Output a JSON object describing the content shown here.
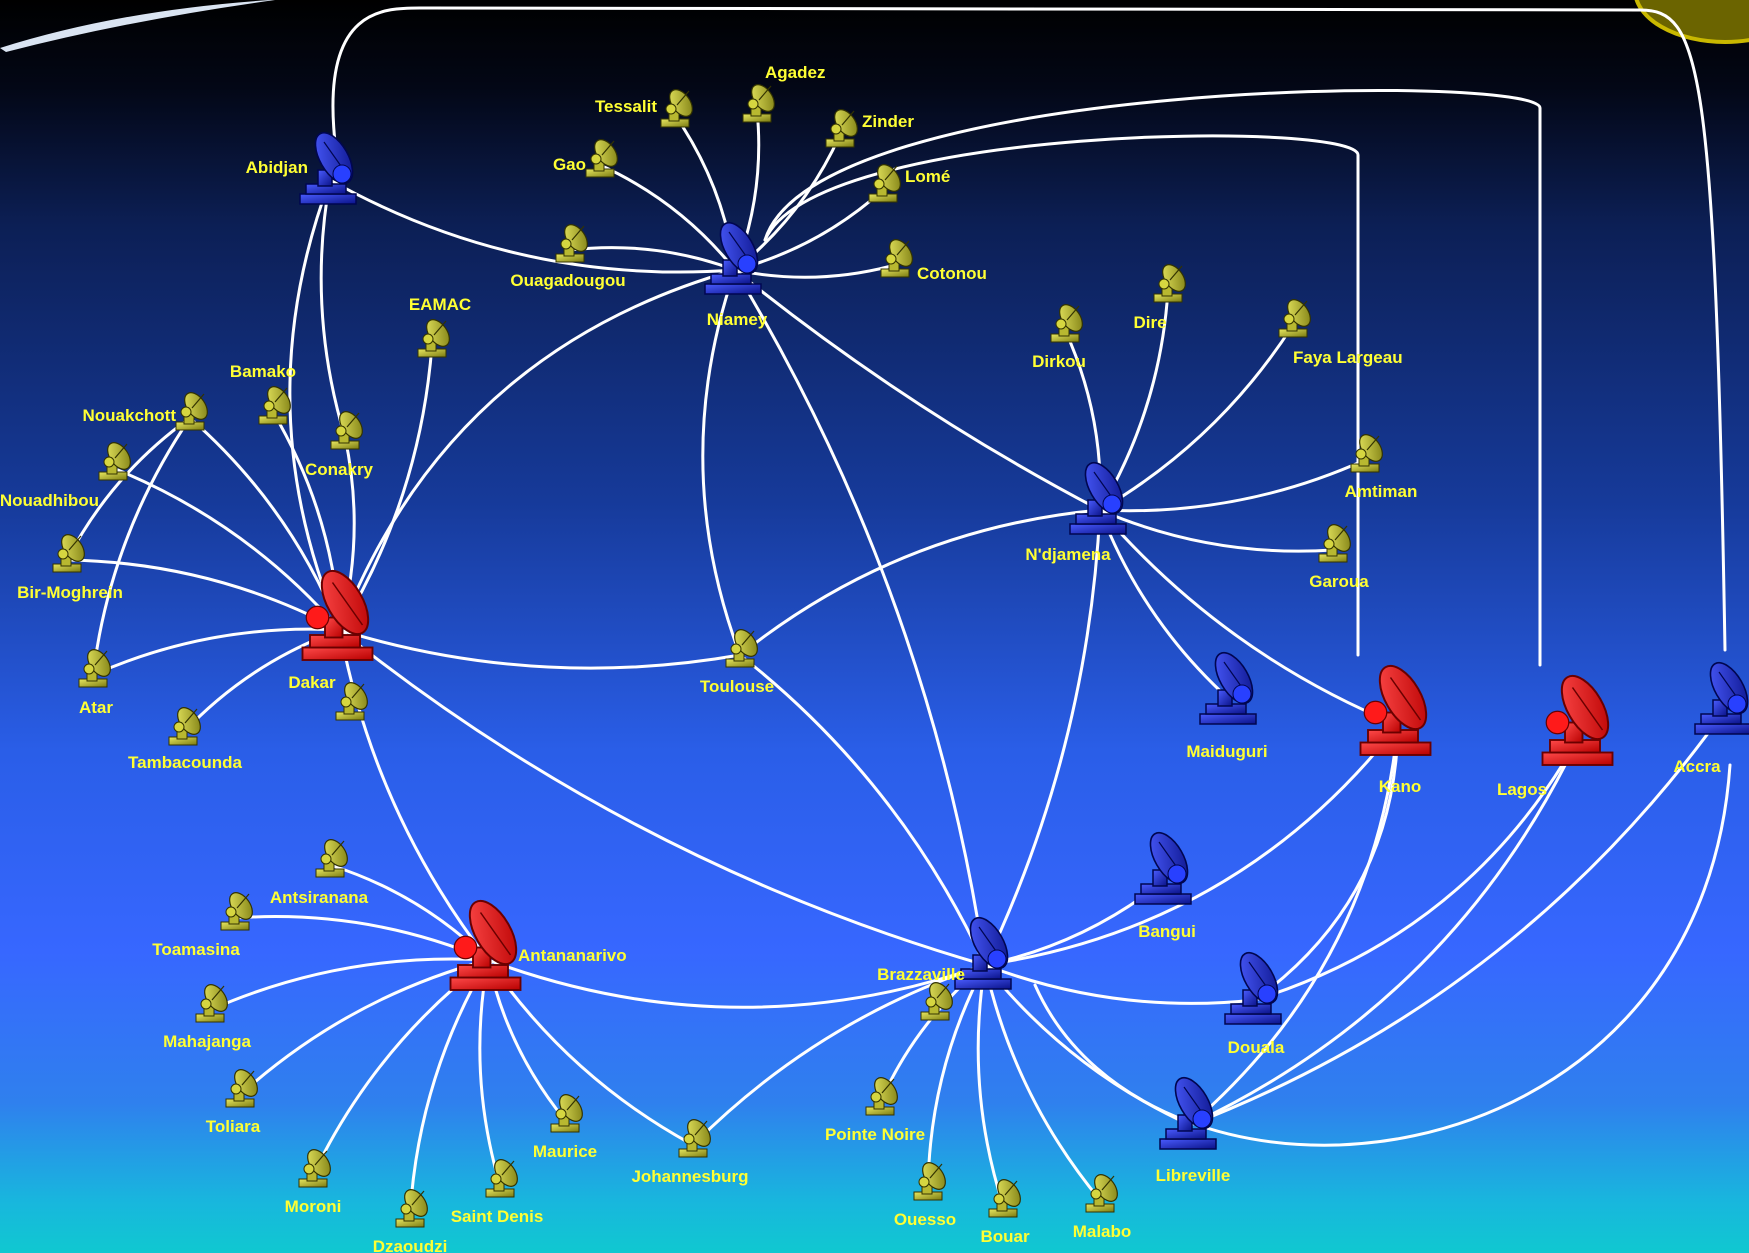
{
  "diagram": {
    "stations": [
      {
        "id": "abidjan",
        "name": "Abidjan",
        "type": "hub-blue"
      },
      {
        "id": "niamey",
        "name": "Niamey",
        "type": "hub-blue"
      },
      {
        "id": "ndjamena",
        "name": "N'djamena",
        "type": "hub-blue"
      },
      {
        "id": "dakar",
        "name": "Dakar",
        "type": "hub-red"
      },
      {
        "id": "antananarivo",
        "name": "Antananarivo",
        "type": "hub-red"
      },
      {
        "id": "brazzaville",
        "name": "Brazzaville",
        "type": "hub-blue"
      },
      {
        "id": "kano",
        "name": "Kano",
        "type": "hub-red"
      },
      {
        "id": "lagos",
        "name": "Lagos",
        "type": "hub-red"
      },
      {
        "id": "accra",
        "name": "Accra",
        "type": "hub-blue"
      },
      {
        "id": "maiduguri",
        "name": "Maiduguri",
        "type": "hub-blue"
      },
      {
        "id": "bangui",
        "name": "Bangui",
        "type": "hub-blue"
      },
      {
        "id": "douala",
        "name": "Douala",
        "type": "hub-blue"
      },
      {
        "id": "libreville",
        "name": "Libreville",
        "type": "hub-blue"
      },
      {
        "id": "tessalit",
        "name": "Tessalit",
        "type": "terminal"
      },
      {
        "id": "agadez",
        "name": "Agadez",
        "type": "terminal"
      },
      {
        "id": "zinder",
        "name": "Zinder",
        "type": "terminal"
      },
      {
        "id": "gao",
        "name": "Gao",
        "type": "terminal"
      },
      {
        "id": "lome",
        "name": "Lomé",
        "type": "terminal"
      },
      {
        "id": "ouagadougou",
        "name": "Ouagadougou",
        "type": "terminal"
      },
      {
        "id": "cotonou",
        "name": "Cotonou",
        "type": "terminal"
      },
      {
        "id": "eamac",
        "name": "EAMAC",
        "type": "terminal"
      },
      {
        "id": "bamako",
        "name": "Bamako",
        "type": "terminal"
      },
      {
        "id": "conakry",
        "name": "Conakry",
        "type": "terminal"
      },
      {
        "id": "nouakchott",
        "name": "Nouakchott",
        "type": "terminal"
      },
      {
        "id": "nouadhibou",
        "name": "Nouadhibou",
        "type": "terminal"
      },
      {
        "id": "birmoghrein",
        "name": "Bir-Moghrein",
        "type": "terminal"
      },
      {
        "id": "atar",
        "name": "Atar",
        "type": "terminal"
      },
      {
        "id": "tambacounda",
        "name": "Tambacounda",
        "type": "terminal"
      },
      {
        "id": "dakar2",
        "name": "",
        "type": "terminal"
      },
      {
        "id": "toulouse",
        "name": "Toulouse",
        "type": "terminal"
      },
      {
        "id": "dirkou",
        "name": "Dirkou",
        "type": "terminal"
      },
      {
        "id": "dire",
        "name": "Dire",
        "type": "terminal"
      },
      {
        "id": "faya",
        "name": "Faya Largeau",
        "type": "terminal"
      },
      {
        "id": "amtiman",
        "name": "Amtiman",
        "type": "terminal"
      },
      {
        "id": "garoua",
        "name": "Garoua",
        "type": "terminal"
      },
      {
        "id": "antsiranana",
        "name": "Antsiranana",
        "type": "terminal"
      },
      {
        "id": "toamasina",
        "name": "Toamasina",
        "type": "terminal"
      },
      {
        "id": "mahajanga",
        "name": "Mahajanga",
        "type": "terminal"
      },
      {
        "id": "toliara",
        "name": "Toliara",
        "type": "terminal"
      },
      {
        "id": "moroni",
        "name": "Moroni",
        "type": "terminal"
      },
      {
        "id": "dzaoudzi",
        "name": "Dzaoudzi",
        "type": "terminal"
      },
      {
        "id": "saintdenis",
        "name": "Saint Denis",
        "type": "terminal"
      },
      {
        "id": "maurice",
        "name": "Maurice",
        "type": "terminal"
      },
      {
        "id": "johannesburg",
        "name": "Johannesburg",
        "type": "terminal"
      },
      {
        "id": "brazza2",
        "name": "",
        "type": "terminal"
      },
      {
        "id": "pointenoire",
        "name": "Pointe Noire",
        "type": "terminal"
      },
      {
        "id": "ouesso",
        "name": "Ouesso",
        "type": "terminal"
      },
      {
        "id": "bouar",
        "name": "Bouar",
        "type": "terminal"
      },
      {
        "id": "malabo",
        "name": "Malabo",
        "type": "terminal"
      }
    ],
    "links": [
      [
        "abidjan",
        "niamey"
      ],
      [
        "abidjan",
        "dakar"
      ],
      [
        "abidjan",
        "conakry"
      ],
      [
        "abidjan",
        "accra"
      ],
      [
        "niamey",
        "tessalit"
      ],
      [
        "niamey",
        "agadez"
      ],
      [
        "niamey",
        "zinder"
      ],
      [
        "niamey",
        "gao"
      ],
      [
        "niamey",
        "lome"
      ],
      [
        "niamey",
        "ouagadougou"
      ],
      [
        "niamey",
        "cotonou"
      ],
      [
        "niamey",
        "kano"
      ],
      [
        "niamey",
        "lagos"
      ],
      [
        "niamey",
        "ndjamena"
      ],
      [
        "niamey",
        "brazzaville"
      ],
      [
        "niamey",
        "dakar"
      ],
      [
        "niamey",
        "toulouse"
      ],
      [
        "dakar",
        "eamac"
      ],
      [
        "dakar",
        "bamako"
      ],
      [
        "dakar",
        "conakry"
      ],
      [
        "dakar",
        "nouakchott"
      ],
      [
        "dakar",
        "nouadhibou"
      ],
      [
        "dakar",
        "birmoghrein"
      ],
      [
        "dakar",
        "atar"
      ],
      [
        "dakar",
        "tambacounda"
      ],
      [
        "dakar",
        "toulouse"
      ],
      [
        "dakar",
        "brazzaville"
      ],
      [
        "dakar",
        "antananarivo"
      ],
      [
        "nouakchott",
        "birmoghrein"
      ],
      [
        "nouakchott",
        "atar"
      ],
      [
        "ndjamena",
        "dirkou"
      ],
      [
        "ndjamena",
        "dire"
      ],
      [
        "ndjamena",
        "faya"
      ],
      [
        "ndjamena",
        "amtiman"
      ],
      [
        "ndjamena",
        "garoua"
      ],
      [
        "ndjamena",
        "maiduguri"
      ],
      [
        "ndjamena",
        "kano"
      ],
      [
        "ndjamena",
        "brazzaville"
      ],
      [
        "ndjamena",
        "toulouse"
      ],
      [
        "toulouse",
        "brazzaville"
      ],
      [
        "antananarivo",
        "antsiranana"
      ],
      [
        "antananarivo",
        "toamasina"
      ],
      [
        "antananarivo",
        "mahajanga"
      ],
      [
        "antananarivo",
        "toliara"
      ],
      [
        "antananarivo",
        "moroni"
      ],
      [
        "antananarivo",
        "dzaoudzi"
      ],
      [
        "antananarivo",
        "saintdenis"
      ],
      [
        "antananarivo",
        "maurice"
      ],
      [
        "antananarivo",
        "johannesburg"
      ],
      [
        "antananarivo",
        "brazzaville"
      ],
      [
        "brazzaville",
        "bangui"
      ],
      [
        "brazzaville",
        "douala"
      ],
      [
        "brazzaville",
        "libreville"
      ],
      [
        "brazzaville",
        "kano"
      ],
      [
        "brazzaville",
        "pointenoire"
      ],
      [
        "brazzaville",
        "ouesso"
      ],
      [
        "brazzaville",
        "bouar"
      ],
      [
        "brazzaville",
        "malabo"
      ],
      [
        "brazzaville",
        "johannesburg"
      ],
      [
        "brazzaville",
        "accra"
      ],
      [
        "kano",
        "douala"
      ],
      [
        "kano",
        "libreville"
      ],
      [
        "lagos",
        "douala"
      ],
      [
        "lagos",
        "libreville"
      ],
      [
        "accra",
        "libreville"
      ]
    ]
  }
}
